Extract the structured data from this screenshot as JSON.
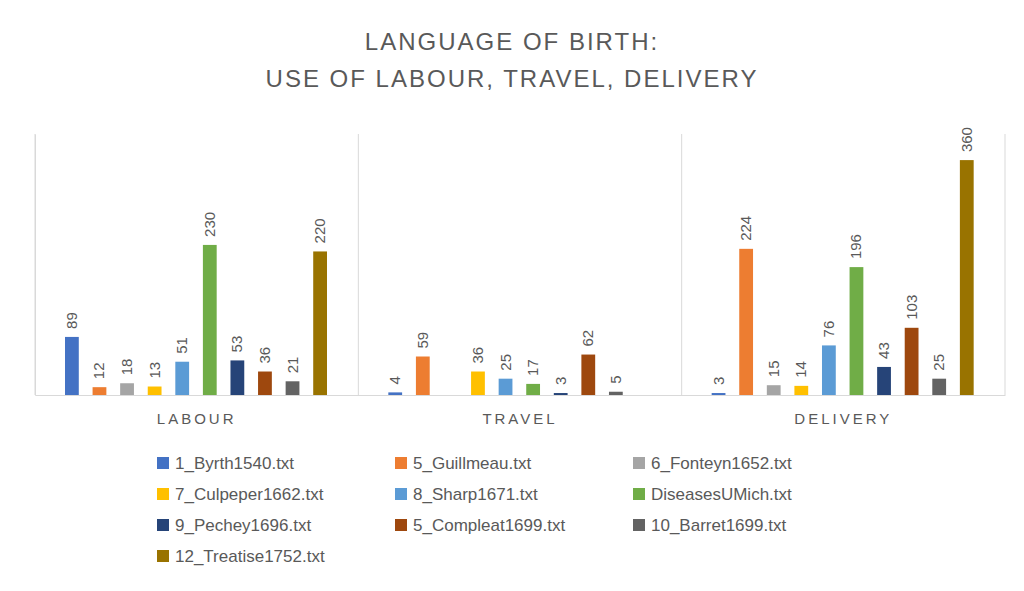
{
  "chart_data": {
    "type": "bar",
    "title": "LANGUAGE OF BIRTH:\nUSE OF LABOUR, TRAVEL, DELIVERY",
    "categories": [
      "LABOUR",
      "TRAVEL",
      "DELIVERY"
    ],
    "series": [
      {
        "name": "1_Byrth1540.txt",
        "color": "#4472c4",
        "values": [
          89,
          4,
          3
        ]
      },
      {
        "name": "5_Guillmeau.txt",
        "color": "#ed7d31",
        "values": [
          12,
          59,
          224
        ]
      },
      {
        "name": "6_Fonteyn1652.txt",
        "color": "#a5a5a5",
        "values": [
          18,
          null,
          15
        ]
      },
      {
        "name": "7_Culpeper1662.txt",
        "color": "#ffc000",
        "values": [
          13,
          36,
          14
        ]
      },
      {
        "name": "8_Sharp1671.txt",
        "color": "#5b9bd5",
        "values": [
          51,
          25,
          76
        ]
      },
      {
        "name": "DiseasesUMich.txt",
        "color": "#70ad47",
        "values": [
          230,
          17,
          196
        ]
      },
      {
        "name": "9_Pechey1696.txt",
        "color": "#264478",
        "values": [
          53,
          3,
          43
        ]
      },
      {
        "name": "5_Compleat1699.txt",
        "color": "#9e480e",
        "values": [
          36,
          62,
          103
        ]
      },
      {
        "name": "10_Barret1699.txt",
        "color": "#636363",
        "values": [
          21,
          5,
          25
        ]
      },
      {
        "name": "12_Treatise1752.txt",
        "color": "#997300",
        "values": [
          220,
          null,
          360
        ]
      }
    ],
    "ylim": [
      0,
      400
    ],
    "yticks": [],
    "grid": true,
    "legend": "bottom",
    "data_labels": true,
    "tick_labels": "x"
  }
}
